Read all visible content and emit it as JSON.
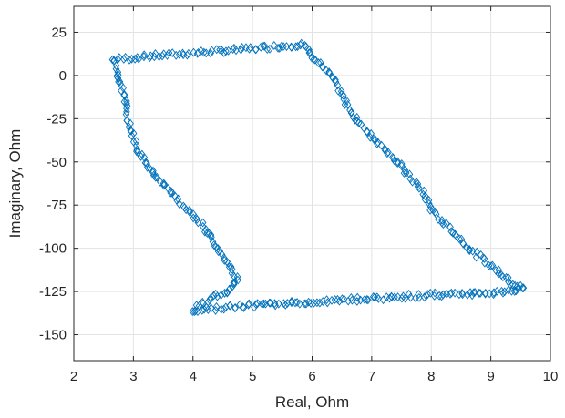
{
  "chart_data": {
    "type": "scatter",
    "marker": "diamond",
    "marker_color": "#0072BD",
    "xlabel": "Real, Ohm",
    "ylabel": "Imaginary, Ohm",
    "xlim": [
      2,
      10
    ],
    "ylim": [
      -165,
      40
    ],
    "xticks": [
      2,
      3,
      4,
      5,
      6,
      7,
      8,
      9,
      10
    ],
    "yticks": [
      -150,
      -125,
      -100,
      -75,
      -50,
      -25,
      0,
      25
    ],
    "grid": true,
    "box": true,
    "series": [
      {
        "name": "",
        "path": [
          [
            2.65,
            9
          ],
          [
            3.2,
            11
          ],
          [
            4.0,
            13
          ],
          [
            4.8,
            15
          ],
          [
            5.5,
            17
          ],
          [
            5.85,
            18
          ],
          [
            6.05,
            10
          ],
          [
            6.35,
            -2
          ],
          [
            6.6,
            -18
          ],
          [
            6.8,
            -28
          ],
          [
            7.0,
            -35
          ],
          [
            7.3,
            -45
          ],
          [
            7.6,
            -57
          ],
          [
            7.85,
            -67
          ],
          [
            8.05,
            -80
          ],
          [
            8.3,
            -88
          ],
          [
            8.5,
            -95
          ],
          [
            8.7,
            -102
          ],
          [
            9.0,
            -110
          ],
          [
            9.2,
            -115
          ],
          [
            9.35,
            -120
          ],
          [
            9.55,
            -123
          ],
          [
            9.3,
            -125
          ],
          [
            8.85,
            -126
          ],
          [
            8.0,
            -127
          ],
          [
            7.0,
            -129
          ],
          [
            6.0,
            -131
          ],
          [
            5.0,
            -133
          ],
          [
            4.6,
            -134
          ],
          [
            4.0,
            -136
          ],
          [
            4.3,
            -128
          ],
          [
            4.6,
            -126
          ],
          [
            4.75,
            -118
          ],
          [
            4.6,
            -110
          ],
          [
            4.4,
            -100
          ],
          [
            4.2,
            -88
          ],
          [
            3.9,
            -77
          ],
          [
            3.6,
            -67
          ],
          [
            3.3,
            -55
          ],
          [
            3.05,
            -42
          ],
          [
            2.9,
            -25
          ],
          [
            2.85,
            -12
          ],
          [
            2.75,
            0
          ],
          [
            2.65,
            9
          ]
        ]
      }
    ]
  }
}
